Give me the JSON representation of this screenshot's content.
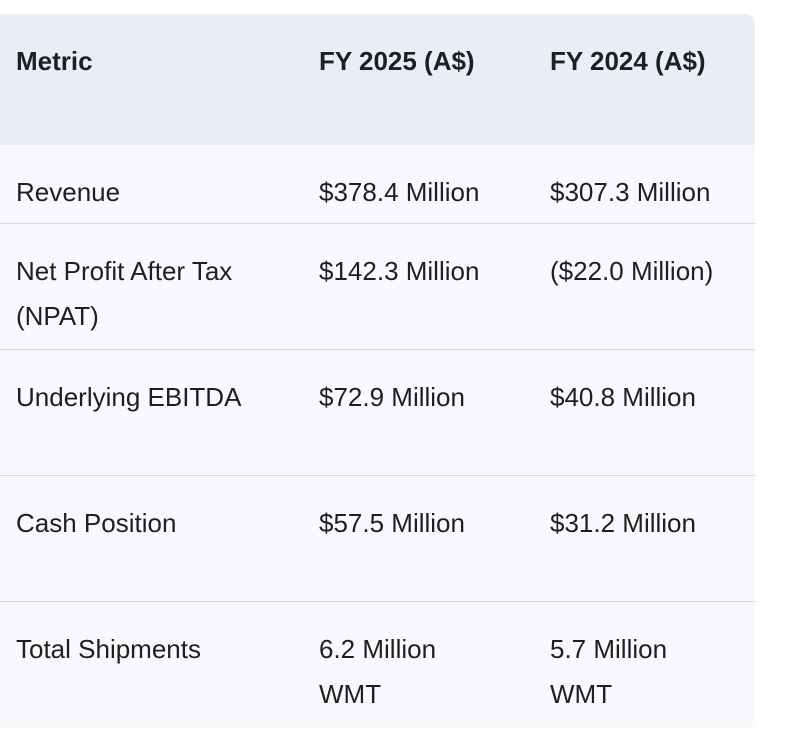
{
  "table": {
    "headers": [
      "Metric",
      "FY 2025 (A$)",
      "FY 2024 (A$)"
    ],
    "rows": [
      {
        "metric": [
          "Revenue"
        ],
        "fy2025": [
          "$378.4 Million"
        ],
        "fy2024": [
          "$307.3 Million"
        ]
      },
      {
        "metric": [
          "Net Profit After Tax",
          "(NPAT)"
        ],
        "fy2025": [
          "$142.3 Million"
        ],
        "fy2024": [
          "($22.0 Million)"
        ]
      },
      {
        "metric": [
          "Underlying EBITDA"
        ],
        "fy2025": [
          "$72.9 Million"
        ],
        "fy2024": [
          "$40.8 Million"
        ]
      },
      {
        "metric": [
          "Cash Position"
        ],
        "fy2025": [
          "$57.5 Million"
        ],
        "fy2024": [
          "$31.2 Million"
        ]
      },
      {
        "metric": [
          "Total Shipments"
        ],
        "fy2025": [
          "6.2 Million",
          "WMT"
        ],
        "fy2024": [
          "5.7 Million",
          "WMT"
        ]
      }
    ]
  }
}
